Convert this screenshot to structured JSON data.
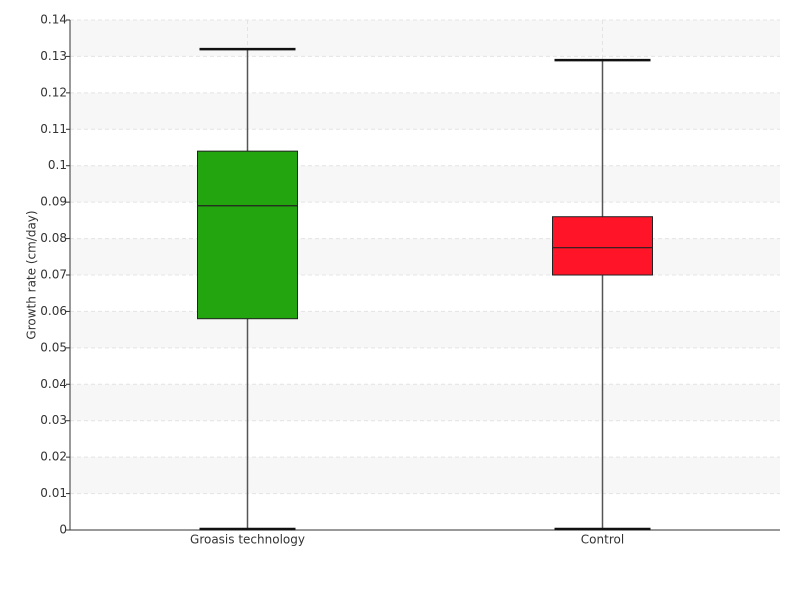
{
  "chart_data": {
    "type": "box",
    "y_label": "Growth rate (cm/day)",
    "categories": [
      "Groasis technology",
      "Control"
    ],
    "boxes": [
      {
        "min": 0,
        "q1": 0.058,
        "median": 0.089,
        "q3": 0.104,
        "max": 0.132,
        "color": "#22a50e"
      },
      {
        "min": 0,
        "q1": 0.07,
        "median": 0.0775,
        "q3": 0.086,
        "max": 0.129,
        "color": "#ff1428"
      }
    ],
    "ylim": [
      0,
      0.14
    ],
    "yticks": [
      0,
      0.01,
      0.02,
      0.03,
      0.04,
      0.05,
      0.06,
      0.07,
      0.08,
      0.09,
      0.1,
      0.11,
      0.12,
      0.13,
      0.14
    ],
    "grid": true
  }
}
